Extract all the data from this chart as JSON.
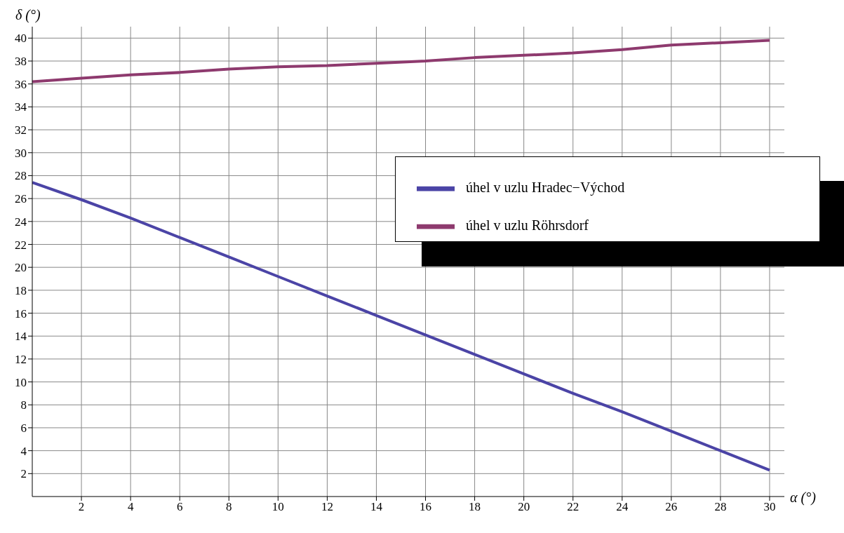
{
  "chart_data": {
    "type": "line",
    "xlabel": "α (°)",
    "ylabel": "δ (°)",
    "x": [
      0,
      2,
      4,
      6,
      8,
      10,
      12,
      14,
      16,
      18,
      20,
      22,
      24,
      26,
      28,
      30
    ],
    "series": [
      {
        "name": "úhel v uzlu Hradec−Východ",
        "color": "#4b44a6",
        "values": [
          27.4,
          25.9,
          24.3,
          22.6,
          20.9,
          19.2,
          17.5,
          15.8,
          14.1,
          12.4,
          10.7,
          9.0,
          7.4,
          5.7,
          4.0,
          2.3
        ]
      },
      {
        "name": "úhel v uzlu Röhrsdorf",
        "color": "#8e3a6e",
        "values": [
          36.2,
          36.5,
          36.8,
          37.0,
          37.3,
          37.5,
          37.6,
          37.8,
          38.0,
          38.3,
          38.5,
          38.7,
          39.0,
          39.4,
          39.6,
          39.8
        ]
      }
    ],
    "xlim": [
      0,
      30.6
    ],
    "ylim": [
      0,
      41
    ],
    "xticks": [
      2,
      4,
      6,
      8,
      10,
      12,
      14,
      16,
      18,
      20,
      22,
      24,
      26,
      28,
      30
    ],
    "yticks": [
      2,
      4,
      6,
      8,
      10,
      12,
      14,
      16,
      18,
      20,
      22,
      24,
      26,
      28,
      30,
      32,
      34,
      36,
      38,
      40
    ],
    "grid": true,
    "legend": "right",
    "marker": "none",
    "line_style": "solid"
  }
}
